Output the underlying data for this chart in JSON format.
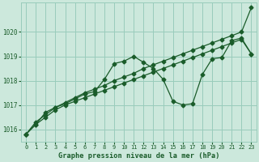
{
  "background_color": "#cce8dc",
  "grid_color": "#99ccbb",
  "line_color": "#1a5c2a",
  "title": "Graphe pression niveau de la mer (hPa)",
  "xlim": [
    -0.5,
    23.5
  ],
  "ylim": [
    1015.5,
    1021.2
  ],
  "yticks": [
    1016,
    1017,
    1018,
    1019,
    1020
  ],
  "xticks": [
    0,
    1,
    2,
    3,
    4,
    5,
    6,
    7,
    8,
    9,
    10,
    11,
    12,
    13,
    14,
    15,
    16,
    17,
    18,
    19,
    20,
    21,
    22,
    23
  ],
  "line1_x": [
    0,
    1,
    2,
    3,
    4,
    5,
    6,
    7,
    8,
    9,
    10,
    11,
    12,
    13,
    14,
    15,
    16,
    17,
    18,
    19,
    20,
    21,
    22,
    23
  ],
  "line1_y": [
    1015.8,
    1016.3,
    1016.6,
    1016.9,
    1017.1,
    1017.3,
    1017.5,
    1017.65,
    1017.8,
    1018.0,
    1018.15,
    1018.3,
    1018.5,
    1018.65,
    1018.8,
    1018.95,
    1019.1,
    1019.25,
    1019.4,
    1019.55,
    1019.7,
    1019.85,
    1020.0,
    1021.0
  ],
  "line2_x": [
    0,
    1,
    2,
    3,
    4,
    5,
    6,
    7,
    8,
    9,
    10,
    11,
    12,
    13,
    14,
    15,
    16,
    17,
    18,
    19,
    20,
    21,
    22,
    23
  ],
  "line2_y": [
    1015.8,
    1016.2,
    1016.5,
    1016.8,
    1017.0,
    1017.15,
    1017.3,
    1017.45,
    1017.6,
    1017.75,
    1017.9,
    1018.05,
    1018.2,
    1018.35,
    1018.5,
    1018.65,
    1018.8,
    1018.95,
    1019.1,
    1019.25,
    1019.4,
    1019.55,
    1019.7,
    1019.1
  ],
  "line3_x": [
    0,
    1,
    2,
    3,
    4,
    5,
    6,
    7,
    8,
    9,
    10,
    11,
    12,
    13,
    14,
    15,
    16,
    17,
    18,
    19,
    20,
    21,
    22,
    23
  ],
  "line3_y": [
    1015.8,
    1016.2,
    1016.7,
    1016.9,
    1017.05,
    1017.25,
    1017.45,
    1017.55,
    1018.05,
    1018.7,
    1018.8,
    1019.0,
    1018.75,
    1018.5,
    1018.05,
    1017.15,
    1017.0,
    1017.05,
    1018.25,
    1018.9,
    1018.95,
    1019.65,
    1019.75,
    1019.1
  ]
}
